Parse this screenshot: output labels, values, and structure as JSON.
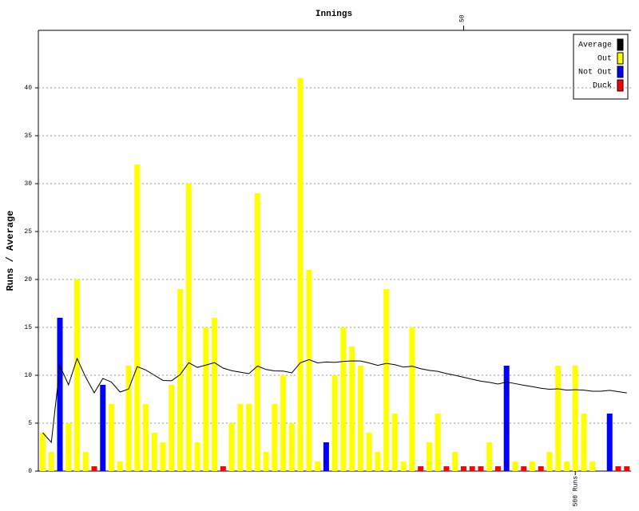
{
  "chart_data": {
    "type": "bar",
    "title": "Innings",
    "y_label": "Runs / Average",
    "categories": [
      null,
      null,
      null,
      null,
      null,
      null,
      null,
      null,
      null,
      null,
      null,
      null,
      null,
      null,
      null,
      null,
      null,
      null,
      null,
      null,
      null,
      null,
      null,
      null,
      null,
      null,
      null,
      null,
      null,
      null,
      null,
      null,
      null,
      null,
      null,
      null,
      null,
      null,
      null,
      null,
      null,
      null,
      null,
      null,
      null,
      null,
      null,
      null,
      null,
      "50",
      null,
      null,
      null,
      null,
      null,
      null,
      null,
      null,
      null,
      null,
      null,
      null,
      null,
      null,
      null,
      null,
      null,
      null,
      null
    ],
    "bottom_labels": [
      null,
      null,
      null,
      null,
      null,
      null,
      null,
      null,
      null,
      null,
      null,
      null,
      null,
      null,
      null,
      null,
      null,
      null,
      null,
      null,
      null,
      null,
      null,
      null,
      null,
      null,
      null,
      null,
      null,
      null,
      null,
      null,
      null,
      null,
      null,
      null,
      null,
      null,
      null,
      null,
      null,
      null,
      null,
      null,
      null,
      null,
      null,
      null,
      null,
      null,
      null,
      null,
      null,
      null,
      null,
      null,
      null,
      null,
      null,
      null,
      null,
      null,
      "500 Runs",
      null,
      null,
      null,
      null,
      null,
      null
    ],
    "series": [
      {
        "name": "Average",
        "type": "line",
        "color": "#000000",
        "values": [
          4,
          3,
          11,
          9,
          11.75,
          9.8,
          8.17,
          9.67,
          9.29,
          8.25,
          8.56,
          10.9,
          10.55,
          10,
          9.46,
          9.43,
          10.07,
          11.31,
          10.82,
          11.06,
          11.32,
          10.75,
          10.48,
          10.32,
          10.17,
          10.96,
          10.6,
          10.46,
          10.44,
          10.25,
          11.31,
          11.63,
          11.29,
          11.39,
          11.34,
          11.45,
          11.5,
          11.49,
          11.28,
          11.03,
          11.24,
          11.1,
          10.85,
          10.95,
          10.69,
          10.51,
          10.41,
          10.18,
          10,
          9.79,
          9.58,
          9.39,
          9.26,
          9.08,
          9.29,
          9.13,
          8.96,
          8.81,
          8.65,
          8.54,
          8.58,
          8.45,
          8.49,
          8.45,
          8.33,
          8.33,
          8.43,
          8.29,
          8.16
        ]
      },
      {
        "name": "Out",
        "type": "bar",
        "color": "#ffff00",
        "values": [
          4,
          2,
          null,
          5,
          20,
          2,
          null,
          null,
          7,
          1,
          11,
          32,
          7,
          4,
          3,
          9,
          19,
          30,
          3,
          15,
          16,
          null,
          5,
          7,
          7,
          29,
          2,
          7,
          10,
          5,
          41,
          21,
          1,
          null,
          10,
          15,
          13,
          11,
          4,
          2,
          19,
          6,
          1,
          15,
          null,
          3,
          6,
          null,
          2,
          null,
          null,
          null,
          3,
          null,
          null,
          1,
          null,
          1,
          null,
          2,
          11,
          1,
          11,
          6,
          1,
          null,
          null,
          null,
          null
        ]
      },
      {
        "name": "Not Out",
        "type": "bar",
        "color": "#0000ff",
        "values": [
          null,
          null,
          16,
          null,
          null,
          null,
          null,
          9,
          null,
          null,
          null,
          null,
          null,
          null,
          null,
          null,
          null,
          null,
          null,
          null,
          null,
          null,
          null,
          null,
          null,
          null,
          null,
          null,
          null,
          null,
          null,
          null,
          null,
          3,
          null,
          null,
          null,
          null,
          null,
          null,
          null,
          null,
          null,
          null,
          null,
          null,
          null,
          null,
          null,
          null,
          null,
          null,
          null,
          null,
          11,
          null,
          null,
          null,
          null,
          null,
          null,
          null,
          null,
          null,
          null,
          null,
          6,
          null,
          null
        ]
      },
      {
        "name": "Duck",
        "type": "bar",
        "color": "#ff0000",
        "values": [
          null,
          null,
          null,
          null,
          null,
          null,
          0,
          null,
          null,
          null,
          null,
          null,
          null,
          null,
          null,
          null,
          null,
          null,
          null,
          null,
          null,
          0,
          null,
          null,
          null,
          null,
          null,
          null,
          null,
          null,
          null,
          null,
          null,
          null,
          null,
          null,
          null,
          null,
          null,
          null,
          null,
          null,
          null,
          null,
          0,
          null,
          null,
          0,
          null,
          0,
          0,
          0,
          null,
          0,
          null,
          null,
          0,
          null,
          0,
          null,
          null,
          null,
          null,
          null,
          null,
          null,
          null,
          0,
          0
        ]
      }
    ],
    "ylim": [
      0,
      46
    ],
    "yticks": [
      0,
      5,
      10,
      15,
      20,
      25,
      30,
      35,
      40
    ],
    "grid": true,
    "legend": "top-right"
  }
}
